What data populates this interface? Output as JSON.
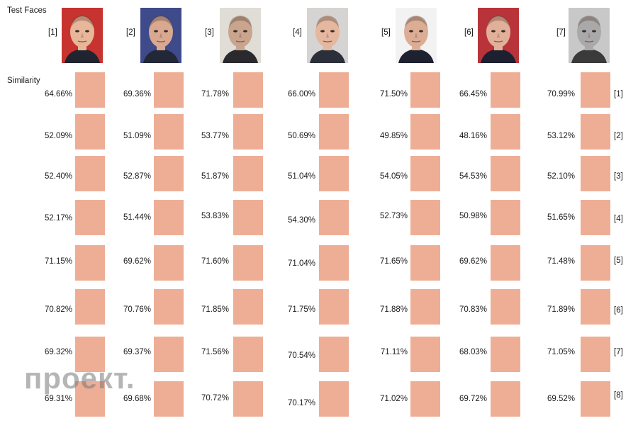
{
  "header": {
    "title": "Test Faces",
    "similarity_label": "Similarity"
  },
  "faces": [
    {
      "label": "[1]",
      "bg": "#c7332e",
      "skin": "#e8b79a",
      "suit": "#1f2430"
    },
    {
      "label": "[2]",
      "bg": "#3e4a8a",
      "skin": "#d9a890",
      "suit": "#222838"
    },
    {
      "label": "[3]",
      "bg": "#e0dcd6",
      "skin": "#c9a58e",
      "suit": "#2a2a2e"
    },
    {
      "label": "[4]",
      "bg": "#d6d4d2",
      "skin": "#e4b79e",
      "suit": "#2b2f3a"
    },
    {
      "label": "[5]",
      "bg": "#f2f2f2",
      "skin": "#dcad95",
      "suit": "#1d2130"
    },
    {
      "label": "[6]",
      "bg": "#b8343a",
      "skin": "#e2b09a",
      "suit": "#1c2030"
    },
    {
      "label": "[7]",
      "bg": "#c8c8c8",
      "skin": "#a9a9a9",
      "suit": "#3a3a3a"
    }
  ],
  "rows": [
    {
      "label": "[1]",
      "values": [
        "64.66%",
        "69.36%",
        "71.78%",
        "66.00%",
        "71.50%",
        "66.45%",
        "70.99%"
      ]
    },
    {
      "label": "[2]",
      "values": [
        "52.09%",
        "51.09%",
        "53.77%",
        "50.69%",
        "49.85%",
        "48.16%",
        "53.12%"
      ]
    },
    {
      "label": "[3]",
      "values": [
        "52.40%",
        "52.87%",
        "51.87%",
        "51.04%",
        "54.05%",
        "54.53%",
        "52.10%"
      ]
    },
    {
      "label": "[4]",
      "values": [
        "52.17%",
        "51.44%",
        "53.83%",
        "54.30%",
        "52.73%",
        "50.98%",
        "51.65%"
      ]
    },
    {
      "label": "[5]",
      "values": [
        "71.15%",
        "69.62%",
        "71.60%",
        "71.04%",
        "71.65%",
        "69.62%",
        "71.48%"
      ]
    },
    {
      "label": "[6]",
      "values": [
        "70.82%",
        "70.76%",
        "71.85%",
        "71.75%",
        "71.88%",
        "70.83%",
        "71.89%"
      ]
    },
    {
      "label": "[7]",
      "values": [
        "69.32%",
        "69.37%",
        "71.56%",
        "70.54%",
        "71.11%",
        "68.03%",
        "71.05%"
      ]
    },
    {
      "label": "[8]",
      "values": [
        "69.31%",
        "69.68%",
        "70.72%",
        "70.17%",
        "71.02%",
        "69.72%",
        "69.52%"
      ]
    }
  ],
  "swatch_color": "#eeae95",
  "watermark": "проект."
}
